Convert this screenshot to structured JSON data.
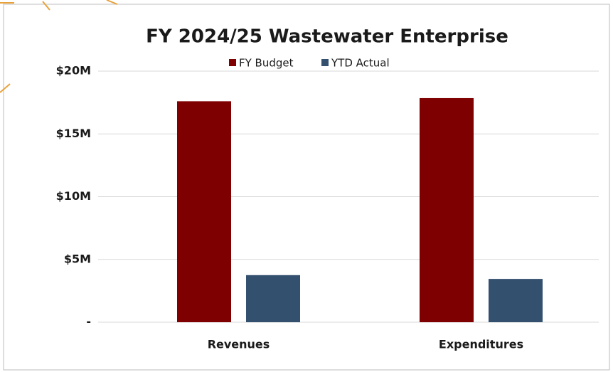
{
  "chart_data": {
    "type": "bar",
    "title": "FY 2024/25 Wastewater Enterprise",
    "categories": [
      "Revenues",
      "Expenditures"
    ],
    "series": [
      {
        "name": "FY Budget",
        "color": "#7f0000",
        "values": [
          17600000,
          17850000
        ]
      },
      {
        "name": "YTD Actual",
        "color": "#34506f",
        "values": [
          3750000,
          3450000
        ]
      }
    ],
    "ylim": [
      0,
      20000000
    ],
    "yticks": [
      {
        "value": 0,
        "label": "-"
      },
      {
        "value": 5000000,
        "label": "$5M"
      },
      {
        "value": 10000000,
        "label": "$10M"
      },
      {
        "value": 15000000,
        "label": "$15M"
      },
      {
        "value": 20000000,
        "label": "$20M"
      }
    ],
    "grid": true,
    "legend": "top"
  }
}
